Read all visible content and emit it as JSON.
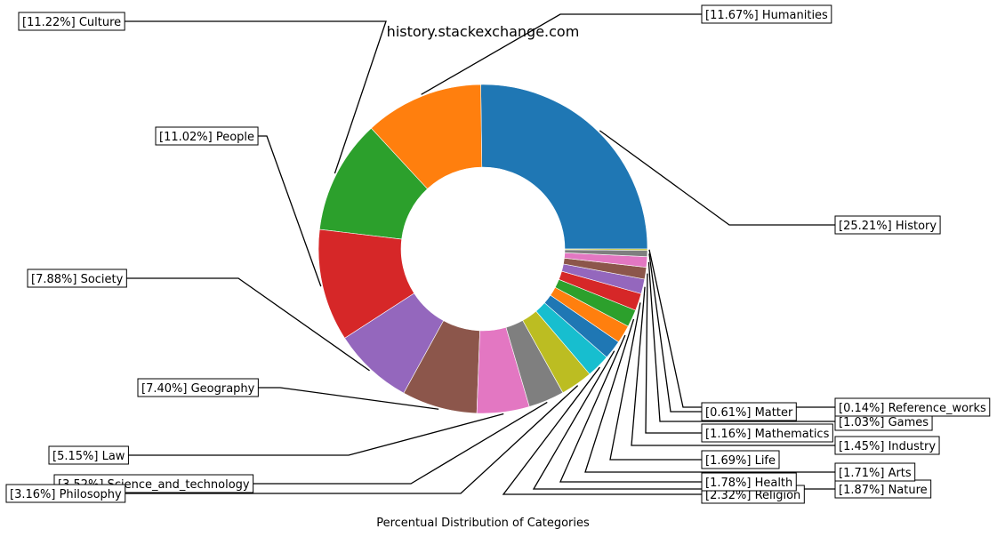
{
  "chart_data": {
    "type": "pie",
    "donut": true,
    "title": "history.stackexchange.com",
    "xlabel": "Percentual Distribution of Categories",
    "slices": [
      {
        "label": "[25.21%] History",
        "name": "History",
        "value": 25.21,
        "color": "#1f77b4"
      },
      {
        "label": "[11.67%] Humanities",
        "name": "Humanities",
        "value": 11.67,
        "color": "#ff7f0e"
      },
      {
        "label": "[11.22%] Culture",
        "name": "Culture",
        "value": 11.22,
        "color": "#2ca02c"
      },
      {
        "label": "[11.02%] People",
        "name": "People",
        "value": 11.02,
        "color": "#d62728"
      },
      {
        "label": "[7.88%] Society",
        "name": "Society",
        "value": 7.88,
        "color": "#9467bd"
      },
      {
        "label": "[7.40%] Geography",
        "name": "Geography",
        "value": 7.4,
        "color": "#8c564b"
      },
      {
        "label": "[5.15%] Law",
        "name": "Law",
        "value": 5.15,
        "color": "#e377c2"
      },
      {
        "label": "[3.52%] Science_and_technology",
        "name": "Science_and_technology",
        "value": 3.52,
        "color": "#7f7f7f"
      },
      {
        "label": "[3.16%] Philosophy",
        "name": "Philosophy",
        "value": 3.16,
        "color": "#bcbd22"
      },
      {
        "label": "[2.32%] Religion",
        "name": "Religion",
        "value": 2.32,
        "color": "#17becf"
      },
      {
        "label": "[1.87%] Nature",
        "name": "Nature",
        "value": 1.87,
        "color": "#1f77b4"
      },
      {
        "label": "[1.78%] Health",
        "name": "Health",
        "value": 1.78,
        "color": "#ff7f0e"
      },
      {
        "label": "[1.71%] Arts",
        "name": "Arts",
        "value": 1.71,
        "color": "#2ca02c"
      },
      {
        "label": "[1.69%] Life",
        "name": "Life",
        "value": 1.69,
        "color": "#d62728"
      },
      {
        "label": "[1.45%] Industry",
        "name": "Industry",
        "value": 1.45,
        "color": "#9467bd"
      },
      {
        "label": "[1.16%] Mathematics",
        "name": "Mathematics",
        "value": 1.16,
        "color": "#8c564b"
      },
      {
        "label": "[1.03%] Games",
        "name": "Games",
        "value": 1.03,
        "color": "#e377c2"
      },
      {
        "label": "[0.61%] Matter",
        "name": "Matter",
        "value": 0.61,
        "color": "#7f7f7f"
      },
      {
        "label": "[0.14%] Reference_works",
        "name": "Reference_works",
        "value": 0.14,
        "color": "#bcbd22"
      }
    ]
  }
}
